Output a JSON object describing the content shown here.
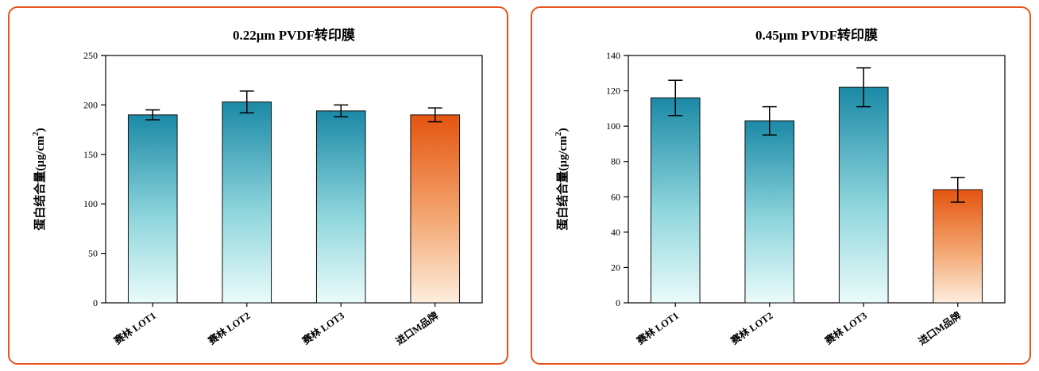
{
  "page": {
    "background": "#ffffff",
    "panel_border_color": "#e8521f"
  },
  "colors": {
    "teal_top": "#1b89a6",
    "teal_mid": "#8fd6dd",
    "teal_bottom": "#eafbfa",
    "orange_top": "#e4540f",
    "orange_mid": "#f4a772",
    "orange_bottom": "#fdeede",
    "axis": "#000000"
  },
  "chart_data": [
    {
      "type": "bar",
      "title": "0.22μm PVDF转印膜",
      "ylabel": {
        "pre": "蛋白结合量(μg/cm",
        "sup": "2",
        "post": ")"
      },
      "categories": [
        "赛林 LOT1",
        "赛林 LOT2",
        "赛林 LOT3",
        "进口M品牌"
      ],
      "values": [
        190,
        203,
        194,
        190
      ],
      "errors": [
        5,
        11,
        6,
        7
      ],
      "ylim": [
        0,
        250
      ],
      "ytick_step": 50,
      "bar_styles": [
        "teal",
        "teal",
        "teal",
        "orange"
      ],
      "grid": false,
      "legend": "none"
    },
    {
      "type": "bar",
      "title": "0.45μm PVDF转印膜",
      "ylabel": {
        "pre": "蛋白结合量(μg/cm",
        "sup": "2",
        "post": ")"
      },
      "categories": [
        "赛林 LOT1",
        "赛林 LOT2",
        "赛林 LOT3",
        "进口M品牌"
      ],
      "values": [
        116,
        103,
        122,
        64
      ],
      "errors": [
        10,
        8,
        11,
        7
      ],
      "ylim": [
        0,
        140
      ],
      "ytick_step": 20,
      "bar_styles": [
        "teal",
        "teal",
        "teal",
        "orange"
      ],
      "grid": false,
      "legend": "none"
    }
  ]
}
